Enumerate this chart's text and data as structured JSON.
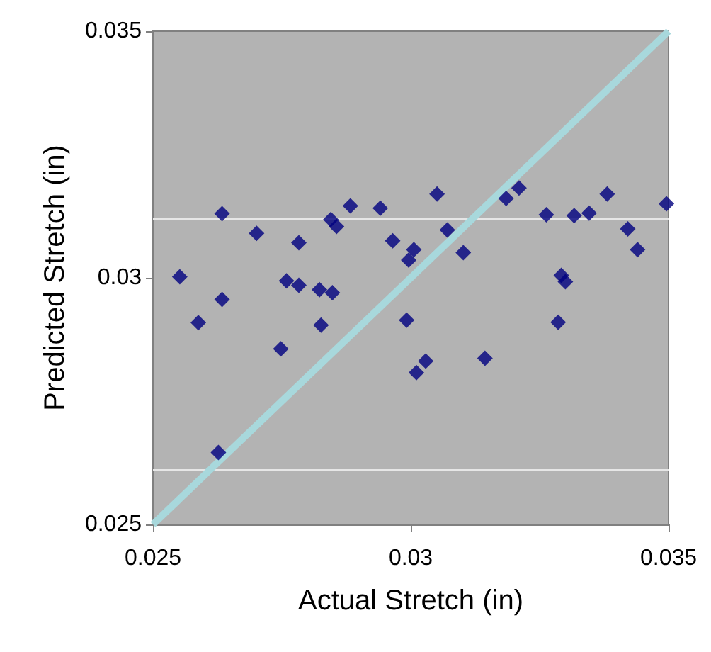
{
  "chart_data": {
    "type": "scatter",
    "xlabel": "Actual Stretch (in)",
    "ylabel": "Predicted Stretch (in)",
    "xlim": [
      0.025,
      0.035
    ],
    "ylim": [
      0.025,
      0.035
    ],
    "xticks": [
      0.025,
      0.03,
      0.035
    ],
    "yticks": [
      0.025,
      0.03,
      0.035
    ],
    "grid": false,
    "ref_lines": [
      {
        "axis": "y",
        "value": 0.0312,
        "color": "#e6e6e6"
      },
      {
        "axis": "y",
        "value": 0.0261,
        "color": "#e6e6e6"
      }
    ],
    "series": [
      {
        "color": "#000080",
        "marker": "diamond",
        "x": [
          0.02552,
          0.02588,
          0.02634,
          0.02634,
          0.02627,
          0.02701,
          0.02748,
          0.02759,
          0.02783,
          0.02783,
          0.02823,
          0.02826,
          0.02848,
          0.02845,
          0.02856,
          0.02883,
          0.02941,
          0.02965,
          0.02992,
          0.02996,
          0.03006,
          0.03011,
          0.03029,
          0.03051,
          0.03071,
          0.03102,
          0.03144,
          0.03185,
          0.0321,
          0.03263,
          0.03286,
          0.03292,
          0.033,
          0.03317,
          0.03346,
          0.03381,
          0.03421,
          0.0344,
          0.03496
        ],
        "values": [
          0.03002,
          0.02909,
          0.0313,
          0.02956,
          0.02646,
          0.0309,
          0.02856,
          0.02994,
          0.02985,
          0.03071,
          0.02976,
          0.02904,
          0.0297,
          0.03118,
          0.03104,
          0.03146,
          0.03141,
          0.03075,
          0.02914,
          0.03036,
          0.03057,
          0.02808,
          0.02831,
          0.0317,
          0.03097,
          0.03051,
          0.02837,
          0.03161,
          0.03182,
          0.03128,
          0.0291,
          0.03005,
          0.02992,
          0.03126,
          0.03131,
          0.0317,
          0.03099,
          0.03057,
          0.0315
        ]
      },
      {
        "type": "line",
        "color": "#a8d8dc",
        "marker": "none",
        "x": [
          0.025,
          0.035
        ],
        "values": [
          0.025,
          0.035
        ]
      }
    ]
  }
}
